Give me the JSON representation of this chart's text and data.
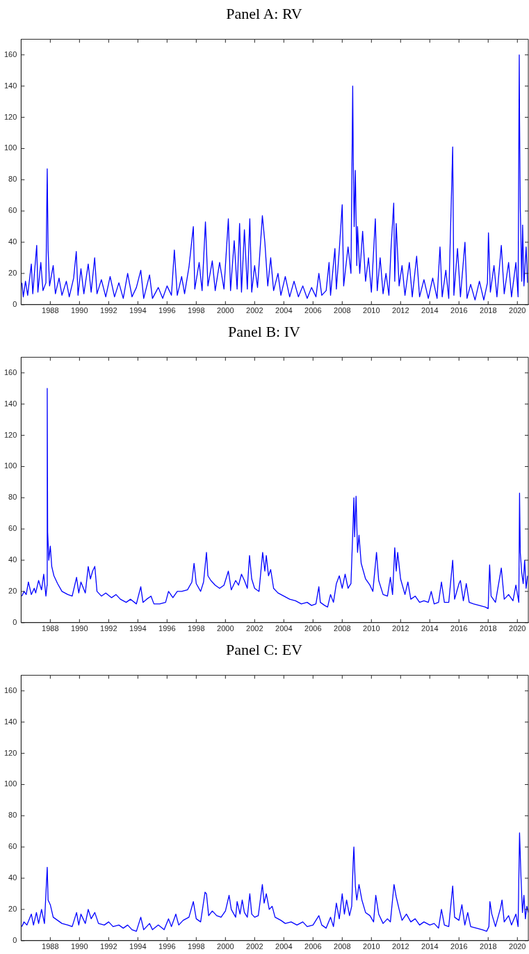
{
  "chart_data": [
    {
      "type": "line",
      "title": "Panel A: RV",
      "xlim": [
        1986,
        2020.75
      ],
      "ylim": [
        0,
        170
      ],
      "xticks": [
        1988,
        1990,
        1992,
        1994,
        1996,
        1998,
        2000,
        2002,
        2004,
        2006,
        2008,
        2010,
        2012,
        2014,
        2016,
        2018,
        2020
      ],
      "yticks": [
        0,
        20,
        40,
        60,
        80,
        100,
        120,
        140,
        160
      ],
      "marker": "none",
      "line_style": "solid",
      "x": [
        1986.05,
        1986.15,
        1986.3,
        1986.45,
        1986.7,
        1986.8,
        1987.07,
        1987.15,
        1987.35,
        1987.5,
        1987.7,
        1987.79,
        1987.85,
        1987.95,
        1988.2,
        1988.35,
        1988.6,
        1988.8,
        1989.1,
        1989.3,
        1989.6,
        1989.78,
        1989.9,
        1990.1,
        1990.3,
        1990.6,
        1990.8,
        1991.04,
        1991.2,
        1991.5,
        1991.8,
        1992.1,
        1992.4,
        1992.7,
        1993.0,
        1993.3,
        1993.6,
        1993.9,
        1994.2,
        1994.4,
        1994.8,
        1995.0,
        1995.4,
        1995.7,
        1996.0,
        1996.3,
        1996.5,
        1996.7,
        1997.0,
        1997.2,
        1997.5,
        1997.8,
        1997.9,
        1998.2,
        1998.4,
        1998.63,
        1998.8,
        1999.1,
        1999.3,
        1999.6,
        1999.9,
        2000.2,
        2000.35,
        2000.6,
        2000.8,
        2000.97,
        2001.1,
        2001.3,
        2001.5,
        2001.67,
        2001.8,
        2002.0,
        2002.2,
        2002.53,
        2002.7,
        2002.9,
        2003.1,
        2003.3,
        2003.6,
        2003.8,
        2004.1,
        2004.4,
        2004.7,
        2005.0,
        2005.3,
        2005.6,
        2005.9,
        2006.2,
        2006.4,
        2006.6,
        2006.9,
        2007.1,
        2007.2,
        2007.5,
        2007.6,
        2007.8,
        2008.0,
        2008.1,
        2008.4,
        2008.6,
        2008.72,
        2008.76,
        2008.82,
        2008.9,
        2009.0,
        2009.05,
        2009.2,
        2009.4,
        2009.6,
        2009.8,
        2010.0,
        2010.27,
        2010.4,
        2010.6,
        2010.8,
        2011.0,
        2011.2,
        2011.35,
        2011.53,
        2011.6,
        2011.7,
        2011.9,
        2012.1,
        2012.3,
        2012.6,
        2012.8,
        2013.1,
        2013.3,
        2013.6,
        2013.9,
        2014.2,
        2014.5,
        2014.7,
        2014.85,
        2015.1,
        2015.3,
        2015.57,
        2015.65,
        2015.9,
        2016.1,
        2016.41,
        2016.55,
        2016.8,
        2017.1,
        2017.4,
        2017.7,
        2017.95,
        2018.02,
        2018.15,
        2018.4,
        2018.6,
        2018.9,
        2019.1,
        2019.4,
        2019.6,
        2019.9,
        2020.05,
        2020.13,
        2020.15,
        2020.2,
        2020.3,
        2020.36,
        2020.45,
        2020.6,
        2020.7
      ],
      "series": [
        {
          "color": "#0000ff",
          "values": [
            14,
            5,
            15,
            6,
            26,
            7,
            38,
            8,
            27,
            9,
            14,
            87,
            35,
            12,
            25,
            7,
            17,
            6,
            15,
            5,
            17,
            34,
            6,
            23,
            7,
            26,
            8,
            30,
            7,
            16,
            5,
            18,
            5,
            14,
            4,
            20,
            5,
            11,
            22,
            4,
            19,
            4,
            11,
            4,
            12,
            6,
            35,
            6,
            18,
            7,
            24,
            50,
            10,
            27,
            9,
            53,
            12,
            28,
            9,
            27,
            10,
            55,
            9,
            41,
            10,
            52,
            8,
            48,
            10,
            55,
            8,
            25,
            11,
            57,
            40,
            12,
            30,
            9,
            20,
            6,
            18,
            5,
            15,
            5,
            12,
            4,
            11,
            5,
            20,
            6,
            9,
            27,
            6,
            36,
            10,
            35,
            64,
            12,
            37,
            20,
            140,
            93,
            50,
            86,
            25,
            50,
            20,
            47,
            15,
            30,
            8,
            55,
            9,
            30,
            7,
            20,
            6,
            37,
            65,
            15,
            52,
            12,
            25,
            6,
            27,
            5,
            31,
            5,
            16,
            4,
            17,
            4,
            37,
            5,
            22,
            4,
            101,
            6,
            36,
            5,
            40,
            4,
            13,
            3,
            15,
            3,
            14,
            46,
            8,
            25,
            5,
            38,
            7,
            27,
            5,
            27,
            5,
            160,
            122,
            62,
            15,
            51,
            12,
            37,
            14
          ]
        }
      ]
    },
    {
      "type": "line",
      "title": "Panel B: IV",
      "xlim": [
        1986,
        2020.75
      ],
      "ylim": [
        0,
        170
      ],
      "xticks": [
        1988,
        1990,
        1992,
        1994,
        1996,
        1998,
        2000,
        2002,
        2004,
        2006,
        2008,
        2010,
        2012,
        2014,
        2016,
        2018,
        2020
      ],
      "yticks": [
        0,
        20,
        40,
        60,
        80,
        100,
        120,
        140,
        160
      ],
      "marker": "none",
      "line_style": "solid",
      "x": [
        1986.05,
        1986.2,
        1986.35,
        1986.5,
        1986.7,
        1986.9,
        1987.0,
        1987.2,
        1987.4,
        1987.55,
        1987.7,
        1987.78,
        1987.79,
        1987.82,
        1987.9,
        1988.0,
        1988.1,
        1988.25,
        1988.5,
        1988.8,
        1989.2,
        1989.5,
        1989.8,
        1989.95,
        1990.1,
        1990.4,
        1990.6,
        1990.75,
        1990.9,
        1991.05,
        1991.2,
        1991.5,
        1991.8,
        1992.2,
        1992.5,
        1992.8,
        1993.2,
        1993.5,
        1993.9,
        1994.2,
        1994.35,
        1994.6,
        1994.9,
        1995.1,
        1995.5,
        1995.9,
        1996.1,
        1996.4,
        1996.7,
        1997.0,
        1997.4,
        1997.7,
        1997.85,
        1998.0,
        1998.3,
        1998.5,
        1998.7,
        1998.8,
        1999.0,
        1999.3,
        1999.6,
        1999.9,
        2000.2,
        2000.4,
        2000.7,
        2000.9,
        2001.1,
        2001.3,
        2001.5,
        2001.65,
        2001.8,
        2002.0,
        2002.3,
        2002.55,
        2002.7,
        2002.8,
        2002.95,
        2003.1,
        2003.3,
        2003.6,
        2004.0,
        2004.4,
        2004.8,
        2005.2,
        2005.6,
        2005.9,
        2006.2,
        2006.4,
        2006.5,
        2006.8,
        2007.0,
        2007.2,
        2007.4,
        2007.6,
        2007.8,
        2008.0,
        2008.2,
        2008.4,
        2008.6,
        2008.75,
        2008.8,
        2008.85,
        2008.95,
        2009.05,
        2009.15,
        2009.3,
        2009.6,
        2009.9,
        2010.1,
        2010.35,
        2010.5,
        2010.8,
        2011.1,
        2011.3,
        2011.45,
        2011.6,
        2011.7,
        2011.8,
        2012.0,
        2012.3,
        2012.5,
        2012.7,
        2013.0,
        2013.3,
        2013.6,
        2013.9,
        2014.1,
        2014.3,
        2014.6,
        2014.8,
        2015.0,
        2015.3,
        2015.57,
        2015.7,
        2016.0,
        2016.1,
        2016.3,
        2016.5,
        2016.7,
        2017.0,
        2017.4,
        2017.8,
        2018.0,
        2018.1,
        2018.2,
        2018.5,
        2018.9,
        2019.1,
        2019.4,
        2019.7,
        2019.9,
        2020.1,
        2020.15,
        2020.2,
        2020.3,
        2020.4,
        2020.5,
        2020.6,
        2020.7
      ],
      "series": [
        {
          "color": "#0000ff",
          "values": [
            17,
            20,
            18,
            26,
            18,
            22,
            19,
            27,
            21,
            31,
            17,
            24,
            150,
            58,
            40,
            49,
            36,
            30,
            25,
            20,
            18,
            17,
            29,
            19,
            26,
            19,
            36,
            28,
            33,
            36,
            20,
            17,
            19,
            16,
            18,
            15,
            13,
            15,
            12,
            23,
            13,
            15,
            17,
            12,
            12,
            13,
            20,
            16,
            20,
            20,
            21,
            26,
            38,
            25,
            20,
            26,
            45,
            30,
            27,
            24,
            22,
            24,
            33,
            21,
            27,
            24,
            31,
            27,
            22,
            43,
            28,
            22,
            20,
            45,
            33,
            43,
            30,
            34,
            22,
            19,
            17,
            15,
            14,
            12,
            13,
            11,
            12,
            23,
            13,
            11,
            10,
            18,
            13,
            25,
            30,
            22,
            31,
            22,
            25,
            65,
            80,
            55,
            81,
            45,
            56,
            38,
            28,
            24,
            20,
            45,
            27,
            18,
            17,
            29,
            18,
            48,
            33,
            45,
            28,
            18,
            26,
            15,
            17,
            13,
            14,
            13,
            20,
            12,
            13,
            26,
            13,
            13,
            40,
            15,
            25,
            27,
            14,
            25,
            13,
            12,
            11,
            10,
            9,
            37,
            17,
            13,
            35,
            15,
            18,
            14,
            24,
            13,
            83,
            45,
            32,
            25,
            40,
            22,
            30
          ]
        }
      ]
    },
    {
      "type": "line",
      "title": "Panel C: EV",
      "xlim": [
        1986,
        2020.75
      ],
      "ylim": [
        0,
        170
      ],
      "xticks": [
        1988,
        1990,
        1992,
        1994,
        1996,
        1998,
        2000,
        2002,
        2004,
        2006,
        2008,
        2010,
        2012,
        2014,
        2016,
        2018,
        2020
      ],
      "yticks": [
        0,
        20,
        40,
        60,
        80,
        100,
        120,
        140,
        160
      ],
      "marker": "none",
      "line_style": "solid",
      "x": [
        1986.05,
        1986.2,
        1986.4,
        1986.7,
        1986.85,
        1987.05,
        1987.2,
        1987.4,
        1987.6,
        1987.79,
        1987.85,
        1988.0,
        1988.2,
        1988.5,
        1988.8,
        1989.2,
        1989.5,
        1989.8,
        1989.95,
        1990.1,
        1990.4,
        1990.6,
        1990.8,
        1991.05,
        1991.3,
        1991.7,
        1992.0,
        1992.3,
        1992.7,
        1993.0,
        1993.3,
        1993.6,
        1993.9,
        1994.2,
        1994.4,
        1994.8,
        1995.0,
        1995.4,
        1995.8,
        1996.1,
        1996.3,
        1996.6,
        1996.8,
        1997.1,
        1997.5,
        1997.8,
        1998.0,
        1998.3,
        1998.6,
        1998.7,
        1998.85,
        1999.1,
        1999.4,
        1999.7,
        2000.0,
        2000.25,
        2000.4,
        2000.7,
        2000.8,
        2001.0,
        2001.15,
        2001.3,
        2001.5,
        2001.67,
        2001.8,
        2002.0,
        2002.25,
        2002.53,
        2002.65,
        2002.8,
        2003.0,
        2003.2,
        2003.4,
        2003.8,
        2004.1,
        2004.5,
        2004.9,
        2005.3,
        2005.6,
        2006.0,
        2006.4,
        2006.6,
        2006.9,
        2007.2,
        2007.4,
        2007.6,
        2007.8,
        2008.0,
        2008.15,
        2008.3,
        2008.5,
        2008.65,
        2008.75,
        2008.8,
        2008.9,
        2009.0,
        2009.15,
        2009.35,
        2009.6,
        2009.9,
        2010.15,
        2010.3,
        2010.5,
        2010.8,
        2011.1,
        2011.3,
        2011.55,
        2011.7,
        2011.9,
        2012.1,
        2012.4,
        2012.7,
        2013.0,
        2013.3,
        2013.6,
        2014.0,
        2014.3,
        2014.6,
        2014.8,
        2015.0,
        2015.3,
        2015.57,
        2015.7,
        2016.0,
        2016.2,
        2016.4,
        2016.6,
        2016.8,
        2017.2,
        2017.6,
        2017.9,
        2018.05,
        2018.12,
        2018.25,
        2018.5,
        2018.85,
        2018.95,
        2019.1,
        2019.4,
        2019.6,
        2019.9,
        2020.05,
        2020.15,
        2020.25,
        2020.35,
        2020.45,
        2020.55,
        2020.65,
        2020.75
      ],
      "series": [
        {
          "color": "#0000ff",
          "values": [
            9,
            12,
            10,
            17,
            10,
            18,
            11,
            20,
            11,
            47,
            26,
            23,
            15,
            13,
            11,
            10,
            9,
            18,
            10,
            17,
            11,
            20,
            14,
            18,
            11,
            10,
            12,
            9,
            10,
            8,
            10,
            7,
            6,
            15,
            7,
            11,
            7,
            10,
            7,
            14,
            9,
            17,
            10,
            13,
            15,
            25,
            14,
            12,
            31,
            30,
            16,
            19,
            16,
            15,
            19,
            29,
            20,
            15,
            25,
            17,
            26,
            18,
            15,
            30,
            17,
            15,
            16,
            36,
            24,
            30,
            20,
            22,
            15,
            13,
            11,
            12,
            10,
            12,
            9,
            10,
            16,
            10,
            8,
            15,
            9,
            24,
            14,
            30,
            17,
            26,
            16,
            22,
            50,
            60,
            35,
            26,
            36,
            26,
            18,
            16,
            12,
            29,
            17,
            11,
            14,
            12,
            36,
            28,
            20,
            13,
            17,
            12,
            14,
            10,
            12,
            10,
            11,
            8,
            20,
            10,
            9,
            35,
            15,
            13,
            23,
            10,
            18,
            9,
            8,
            7,
            6,
            9,
            25,
            17,
            9,
            21,
            26,
            12,
            16,
            10,
            17,
            9,
            69,
            40,
            18,
            29,
            14,
            22,
            18
          ]
        }
      ]
    }
  ]
}
